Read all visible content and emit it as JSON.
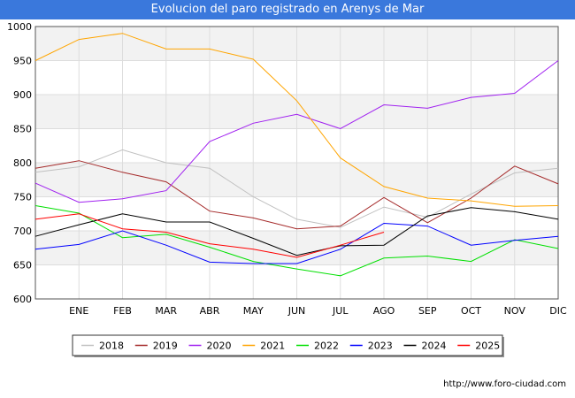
{
  "title": "Evolucion del paro registrado en Arenys de Mar",
  "footer_url": "http://www.foro-ciudad.com",
  "colors": {
    "title_bg": "#3a78dc",
    "band": "#f2f2f2",
    "grid": "#dddddd"
  },
  "chart_data": {
    "type": "line",
    "title": "Evolucion del paro registrado en Arenys de Mar",
    "xlabel": "",
    "ylabel": "",
    "categories": [
      "",
      "ENE",
      "FEB",
      "MAR",
      "ABR",
      "MAY",
      "JUN",
      "JUL",
      "AGO",
      "SEP",
      "OCT",
      "NOV",
      "DIC"
    ],
    "ylim": [
      600,
      1000
    ],
    "yticks": [
      600,
      650,
      700,
      750,
      800,
      850,
      900,
      950,
      1000
    ],
    "grid": true,
    "legend_position": "bottom",
    "series": [
      {
        "name": "2018",
        "color": "#c0c0c0",
        "values": [
          786,
          794,
          819,
          800,
          792,
          750,
          717,
          705,
          735,
          720,
          754,
          785,
          792
        ]
      },
      {
        "name": "2019",
        "color": "#a52a2a",
        "values": [
          792,
          803,
          786,
          772,
          729,
          719,
          703,
          707,
          749,
          712,
          748,
          795,
          769
        ]
      },
      {
        "name": "2020",
        "color": "#a020f0",
        "values": [
          770,
          742,
          747,
          759,
          831,
          858,
          871,
          850,
          885,
          880,
          896,
          902,
          950
        ]
      },
      {
        "name": "2021",
        "color": "#ffa500",
        "values": [
          950,
          981,
          990,
          967,
          967,
          952,
          891,
          807,
          765,
          748,
          744,
          736,
          737
        ]
      },
      {
        "name": "2022",
        "color": "#00e000",
        "values": [
          737,
          726,
          690,
          695,
          676,
          655,
          644,
          634,
          660,
          663,
          655,
          687,
          674
        ]
      },
      {
        "name": "2023",
        "color": "#0000ff",
        "values": [
          673,
          680,
          700,
          679,
          654,
          652,
          652,
          673,
          711,
          707,
          679,
          686,
          692
        ]
      },
      {
        "name": "2024",
        "color": "#000000",
        "values": [
          692,
          709,
          725,
          713,
          713,
          689,
          664,
          678,
          679,
          722,
          734,
          728,
          717
        ]
      },
      {
        "name": "2025",
        "color": "#ff0000",
        "values": [
          717,
          725,
          703,
          698,
          681,
          673,
          661,
          679,
          698,
          null,
          null,
          null,
          null
        ]
      }
    ]
  }
}
